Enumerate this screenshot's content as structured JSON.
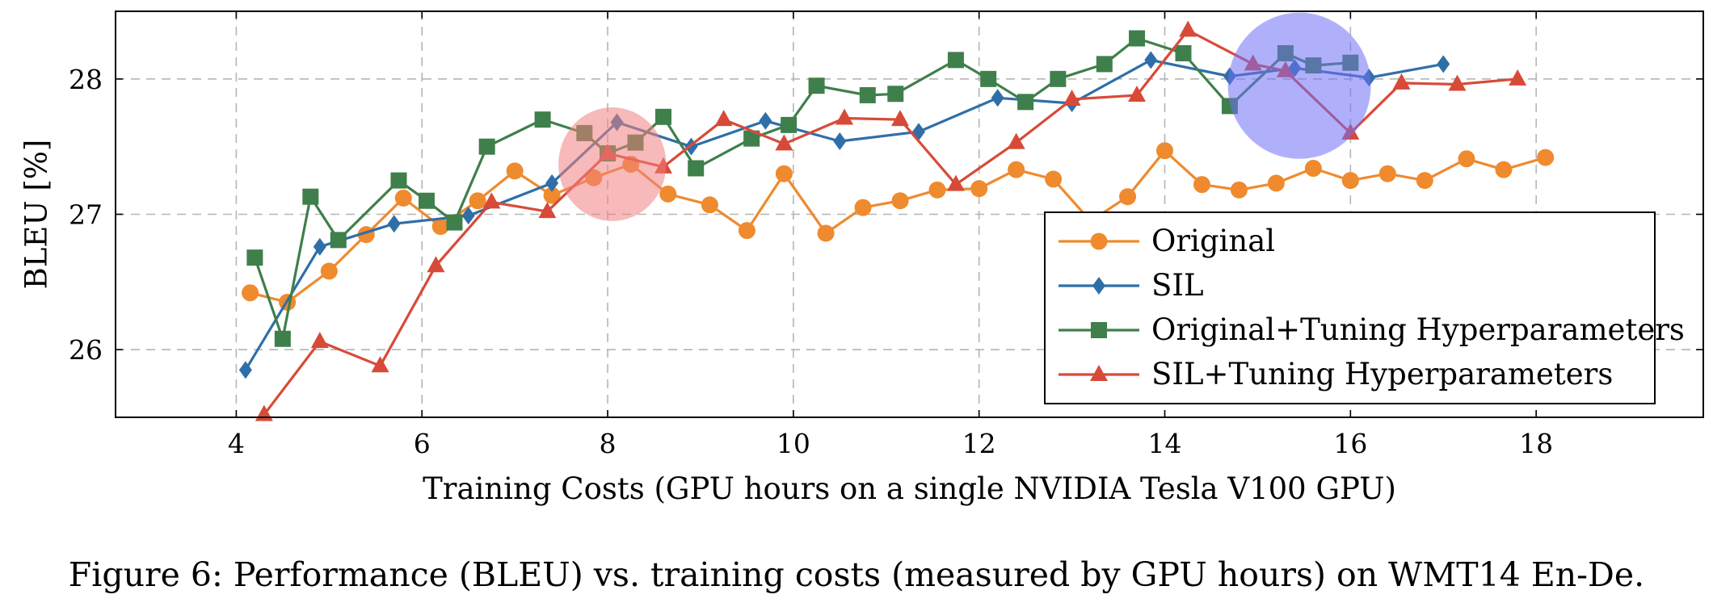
{
  "caption": "Figure 6: Performance (BLEU) vs. training costs (measured by GPU hours) on WMT14 En-De.",
  "chart_data": {
    "type": "line",
    "xlabel": "Training Costs (GPU hours on a single NVIDIA Tesla V100 GPU)",
    "ylabel": "BLEU [%]",
    "xlim": [
      2.7,
      19.8
    ],
    "ylim": [
      25.5,
      28.5
    ],
    "xticks": [
      "4",
      "6",
      "8",
      "10",
      "12",
      "14",
      "16",
      "18"
    ],
    "yticks": [
      "26",
      "27",
      "28"
    ],
    "grid": true,
    "legend_position": "bottom-right",
    "series": [
      {
        "name": "Original",
        "color": "#ef8a2e",
        "marker": "circle",
        "points": [
          [
            4.15,
            26.42
          ],
          [
            4.55,
            26.35
          ],
          [
            5.0,
            26.58
          ],
          [
            5.4,
            26.85
          ],
          [
            5.8,
            27.12
          ],
          [
            6.2,
            26.91
          ],
          [
            6.6,
            27.1
          ],
          [
            7.0,
            27.32
          ],
          [
            7.4,
            27.14
          ],
          [
            7.85,
            27.27
          ],
          [
            8.25,
            27.37
          ],
          [
            8.65,
            27.15
          ],
          [
            9.1,
            27.07
          ],
          [
            9.5,
            26.88
          ],
          [
            9.9,
            27.3
          ],
          [
            10.35,
            26.86
          ],
          [
            10.75,
            27.05
          ],
          [
            11.15,
            27.1
          ],
          [
            11.55,
            27.18
          ],
          [
            12.0,
            27.19
          ],
          [
            12.4,
            27.33
          ],
          [
            12.8,
            27.26
          ],
          [
            13.2,
            26.95
          ],
          [
            13.6,
            27.13
          ],
          [
            14.0,
            27.47
          ],
          [
            14.4,
            27.22
          ],
          [
            14.8,
            27.18
          ],
          [
            15.2,
            27.23
          ],
          [
            15.6,
            27.34
          ],
          [
            16.0,
            27.25
          ],
          [
            16.4,
            27.3
          ],
          [
            16.8,
            27.25
          ],
          [
            17.25,
            27.41
          ],
          [
            17.65,
            27.33
          ],
          [
            18.1,
            27.42
          ]
        ]
      },
      {
        "name": "SIL",
        "color": "#2f6fa7",
        "marker": "diamond",
        "points": [
          [
            4.1,
            25.85
          ],
          [
            4.9,
            26.76
          ],
          [
            5.7,
            26.93
          ],
          [
            6.5,
            26.99
          ],
          [
            7.4,
            27.23
          ],
          [
            8.1,
            27.68
          ],
          [
            8.9,
            27.5
          ],
          [
            9.7,
            27.69
          ],
          [
            10.5,
            27.54
          ],
          [
            11.35,
            27.61
          ],
          [
            12.2,
            27.86
          ],
          [
            13.0,
            27.82
          ],
          [
            13.85,
            28.14
          ],
          [
            14.7,
            28.02
          ],
          [
            15.4,
            28.08
          ],
          [
            16.2,
            28.01
          ],
          [
            17.0,
            28.11
          ]
        ]
      },
      {
        "name": "Original+Tuning Hyperparameters",
        "color": "#3f7f4b",
        "marker": "square",
        "points": [
          [
            4.2,
            26.68
          ],
          [
            4.5,
            26.08
          ],
          [
            4.8,
            27.13
          ],
          [
            5.1,
            26.81
          ],
          [
            5.75,
            27.25
          ],
          [
            6.05,
            27.1
          ],
          [
            6.35,
            26.94
          ],
          [
            6.7,
            27.5
          ],
          [
            7.3,
            27.7
          ],
          [
            7.75,
            27.6
          ],
          [
            8.0,
            27.45
          ],
          [
            8.3,
            27.53
          ],
          [
            8.6,
            27.72
          ],
          [
            8.95,
            27.34
          ],
          [
            9.55,
            27.56
          ],
          [
            9.95,
            27.66
          ],
          [
            10.25,
            27.95
          ],
          [
            10.8,
            27.88
          ],
          [
            11.1,
            27.89
          ],
          [
            11.75,
            28.14
          ],
          [
            12.1,
            28.0
          ],
          [
            12.5,
            27.83
          ],
          [
            12.85,
            28.0
          ],
          [
            13.35,
            28.11
          ],
          [
            13.7,
            28.3
          ],
          [
            14.2,
            28.19
          ],
          [
            14.7,
            27.8
          ],
          [
            15.3,
            28.19
          ],
          [
            15.6,
            28.1
          ],
          [
            16.0,
            28.12
          ]
        ]
      },
      {
        "name": "SIL+Tuning Hyperparameters",
        "color": "#d84a38",
        "marker": "triangle",
        "points": [
          [
            4.3,
            25.52
          ],
          [
            4.9,
            26.06
          ],
          [
            5.55,
            25.88
          ],
          [
            6.15,
            26.62
          ],
          [
            6.75,
            27.09
          ],
          [
            7.35,
            27.02
          ],
          [
            8.0,
            27.45
          ],
          [
            8.6,
            27.35
          ],
          [
            9.25,
            27.7
          ],
          [
            9.9,
            27.52
          ],
          [
            10.55,
            27.71
          ],
          [
            11.15,
            27.7
          ],
          [
            11.75,
            27.22
          ],
          [
            12.4,
            27.53
          ],
          [
            13.0,
            27.85
          ],
          [
            13.7,
            27.88
          ],
          [
            14.25,
            28.36
          ],
          [
            14.95,
            28.11
          ],
          [
            15.3,
            28.06
          ],
          [
            16.0,
            27.6
          ],
          [
            16.55,
            27.97
          ],
          [
            17.15,
            27.96
          ],
          [
            17.8,
            28.0
          ]
        ]
      }
    ],
    "highlights": [
      {
        "color": "#f07f7f",
        "x": 8.05,
        "y": 27.37,
        "rx": 0.58,
        "ry": 0.42
      },
      {
        "color": "#7070f5",
        "x": 15.45,
        "y": 27.95,
        "rx": 0.77,
        "ry": 0.54
      }
    ]
  }
}
